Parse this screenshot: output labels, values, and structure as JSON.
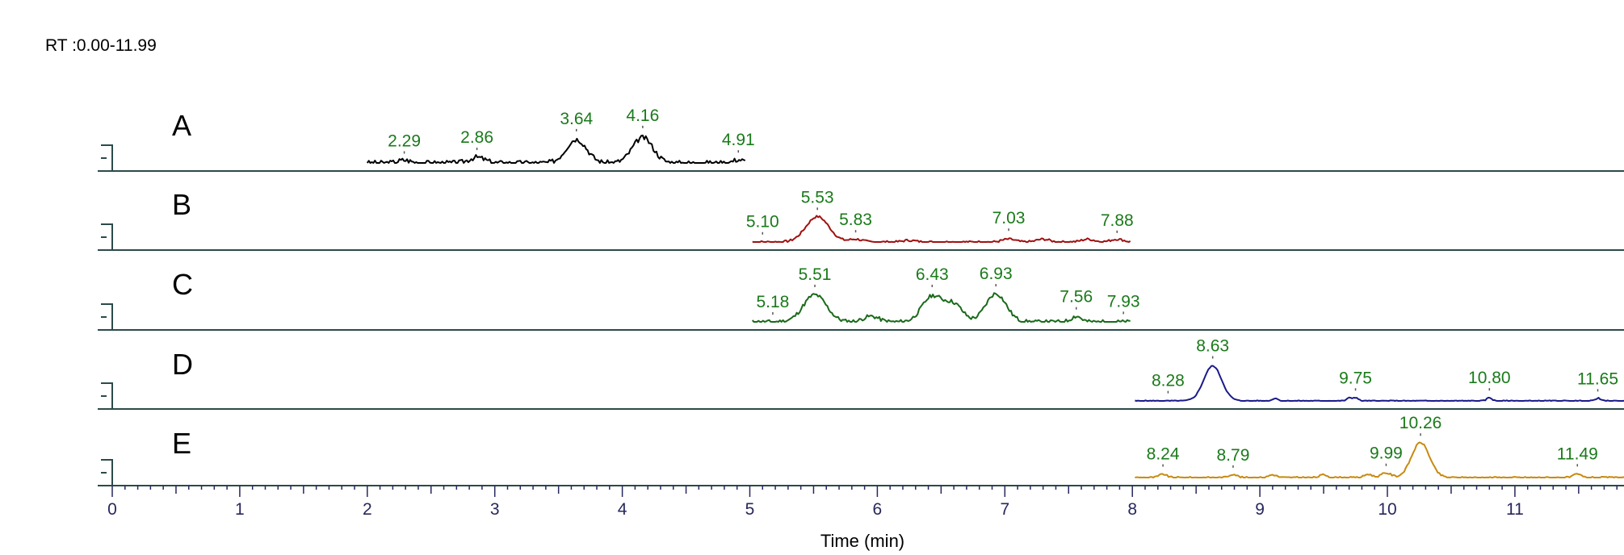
{
  "header": {
    "rt_range": "RT :0.00-11.99"
  },
  "chart_data": {
    "type": "line",
    "title": "",
    "xlabel": "Time (min)",
    "ylabel": "",
    "xlim": [
      0,
      12
    ],
    "x_ticks": [
      "0",
      "1",
      "2",
      "3",
      "4",
      "5",
      "6",
      "7",
      "8",
      "9",
      "10",
      "11"
    ],
    "grid": false,
    "colors": {
      "peak_label": "#1a7a1a",
      "axis": "#27275e",
      "baseline": "#2c4a4a"
    },
    "panels": [
      {
        "name": "A",
        "color": "#000000",
        "x_range": [
          2.0,
          4.97
        ],
        "noise_seed": 3,
        "noise_amp": 0.045,
        "peaks": [
          {
            "rt": 2.29,
            "height": 0.05,
            "width": 0.05
          },
          {
            "rt": 2.86,
            "height": 0.1,
            "width": 0.06
          },
          {
            "rt": 3.64,
            "height": 0.42,
            "width": 0.08
          },
          {
            "rt": 4.16,
            "height": 0.45,
            "width": 0.08
          },
          {
            "rt": 4.91,
            "height": 0.06,
            "width": 0.04
          }
        ],
        "labels": [
          {
            "text": "2.29",
            "rt": 2.29
          },
          {
            "text": "2.86",
            "rt": 2.86
          },
          {
            "text": "3.64",
            "rt": 3.64
          },
          {
            "text": "4.16",
            "rt": 4.16
          },
          {
            "text": "4.91",
            "rt": 4.91
          }
        ]
      },
      {
        "name": "B",
        "color": "#a01010",
        "x_range": [
          5.02,
          7.99
        ],
        "noise_seed": 7,
        "noise_amp": 0.02,
        "peaks": [
          {
            "rt": 5.53,
            "height": 0.45,
            "width": 0.09
          },
          {
            "rt": 5.83,
            "height": 0.05,
            "width": 0.05
          },
          {
            "rt": 6.25,
            "height": 0.03,
            "width": 0.05
          },
          {
            "rt": 7.03,
            "height": 0.05,
            "width": 0.05
          },
          {
            "rt": 7.3,
            "height": 0.05,
            "width": 0.05
          },
          {
            "rt": 7.65,
            "height": 0.05,
            "width": 0.05
          },
          {
            "rt": 7.88,
            "height": 0.05,
            "width": 0.05
          }
        ],
        "labels": [
          {
            "text": "5.10",
            "rt": 5.1
          },
          {
            "text": "5.53",
            "rt": 5.53
          },
          {
            "text": "5.83",
            "rt": 5.83
          },
          {
            "text": "7.03",
            "rt": 7.03
          },
          {
            "text": "7.88",
            "rt": 7.88
          }
        ]
      },
      {
        "name": "C",
        "color": "#1a6a1a",
        "x_range": [
          5.02,
          7.99
        ],
        "noise_seed": 11,
        "noise_amp": 0.035,
        "peaks": [
          {
            "rt": 5.51,
            "height": 0.48,
            "width": 0.09
          },
          {
            "rt": 5.95,
            "height": 0.1,
            "width": 0.06
          },
          {
            "rt": 6.43,
            "height": 0.45,
            "width": 0.08
          },
          {
            "rt": 6.6,
            "height": 0.3,
            "width": 0.07
          },
          {
            "rt": 6.93,
            "height": 0.5,
            "width": 0.08
          },
          {
            "rt": 7.56,
            "height": 0.1,
            "width": 0.04
          }
        ],
        "labels": [
          {
            "text": "5.18",
            "rt": 5.18
          },
          {
            "text": "5.51",
            "rt": 5.51
          },
          {
            "text": "6.43",
            "rt": 6.43
          },
          {
            "text": "6.93",
            "rt": 6.93
          },
          {
            "text": "7.56",
            "rt": 7.56
          },
          {
            "text": "7.93",
            "rt": 7.93
          }
        ]
      },
      {
        "name": "D",
        "color": "#1a1a8a",
        "x_range": [
          8.02,
          11.99
        ],
        "noise_seed": 5,
        "noise_amp": 0.01,
        "peaks": [
          {
            "rt": 8.63,
            "height": 0.62,
            "width": 0.07
          },
          {
            "rt": 9.12,
            "height": 0.05,
            "width": 0.02
          },
          {
            "rt": 9.7,
            "height": 0.05,
            "width": 0.02
          },
          {
            "rt": 9.75,
            "height": 0.06,
            "width": 0.02
          },
          {
            "rt": 10.8,
            "height": 0.06,
            "width": 0.02
          },
          {
            "rt": 11.65,
            "height": 0.05,
            "width": 0.02
          }
        ],
        "labels": [
          {
            "text": "8.28",
            "rt": 8.28
          },
          {
            "text": "8.63",
            "rt": 8.63
          },
          {
            "text": "9.75",
            "rt": 9.75
          },
          {
            "text": "10.80",
            "rt": 10.8
          },
          {
            "text": "11.65",
            "rt": 11.65
          }
        ]
      },
      {
        "name": "E",
        "color": "#c88a10",
        "x_range": [
          8.02,
          11.99
        ],
        "noise_seed": 9,
        "noise_amp": 0.015,
        "peaks": [
          {
            "rt": 8.24,
            "height": 0.06,
            "width": 0.03
          },
          {
            "rt": 8.79,
            "height": 0.06,
            "width": 0.03
          },
          {
            "rt": 9.1,
            "height": 0.05,
            "width": 0.03
          },
          {
            "rt": 9.5,
            "height": 0.05,
            "width": 0.03
          },
          {
            "rt": 9.85,
            "height": 0.06,
            "width": 0.03
          },
          {
            "rt": 9.99,
            "height": 0.08,
            "width": 0.04
          },
          {
            "rt": 10.26,
            "height": 0.62,
            "width": 0.07
          },
          {
            "rt": 11.49,
            "height": 0.06,
            "width": 0.03
          }
        ],
        "labels": [
          {
            "text": "8.24",
            "rt": 8.24
          },
          {
            "text": "8.79",
            "rt": 8.79
          },
          {
            "text": "9.99",
            "rt": 9.99
          },
          {
            "text": "10.26",
            "rt": 10.26
          },
          {
            "text": "11.49",
            "rt": 11.49
          }
        ]
      }
    ]
  }
}
